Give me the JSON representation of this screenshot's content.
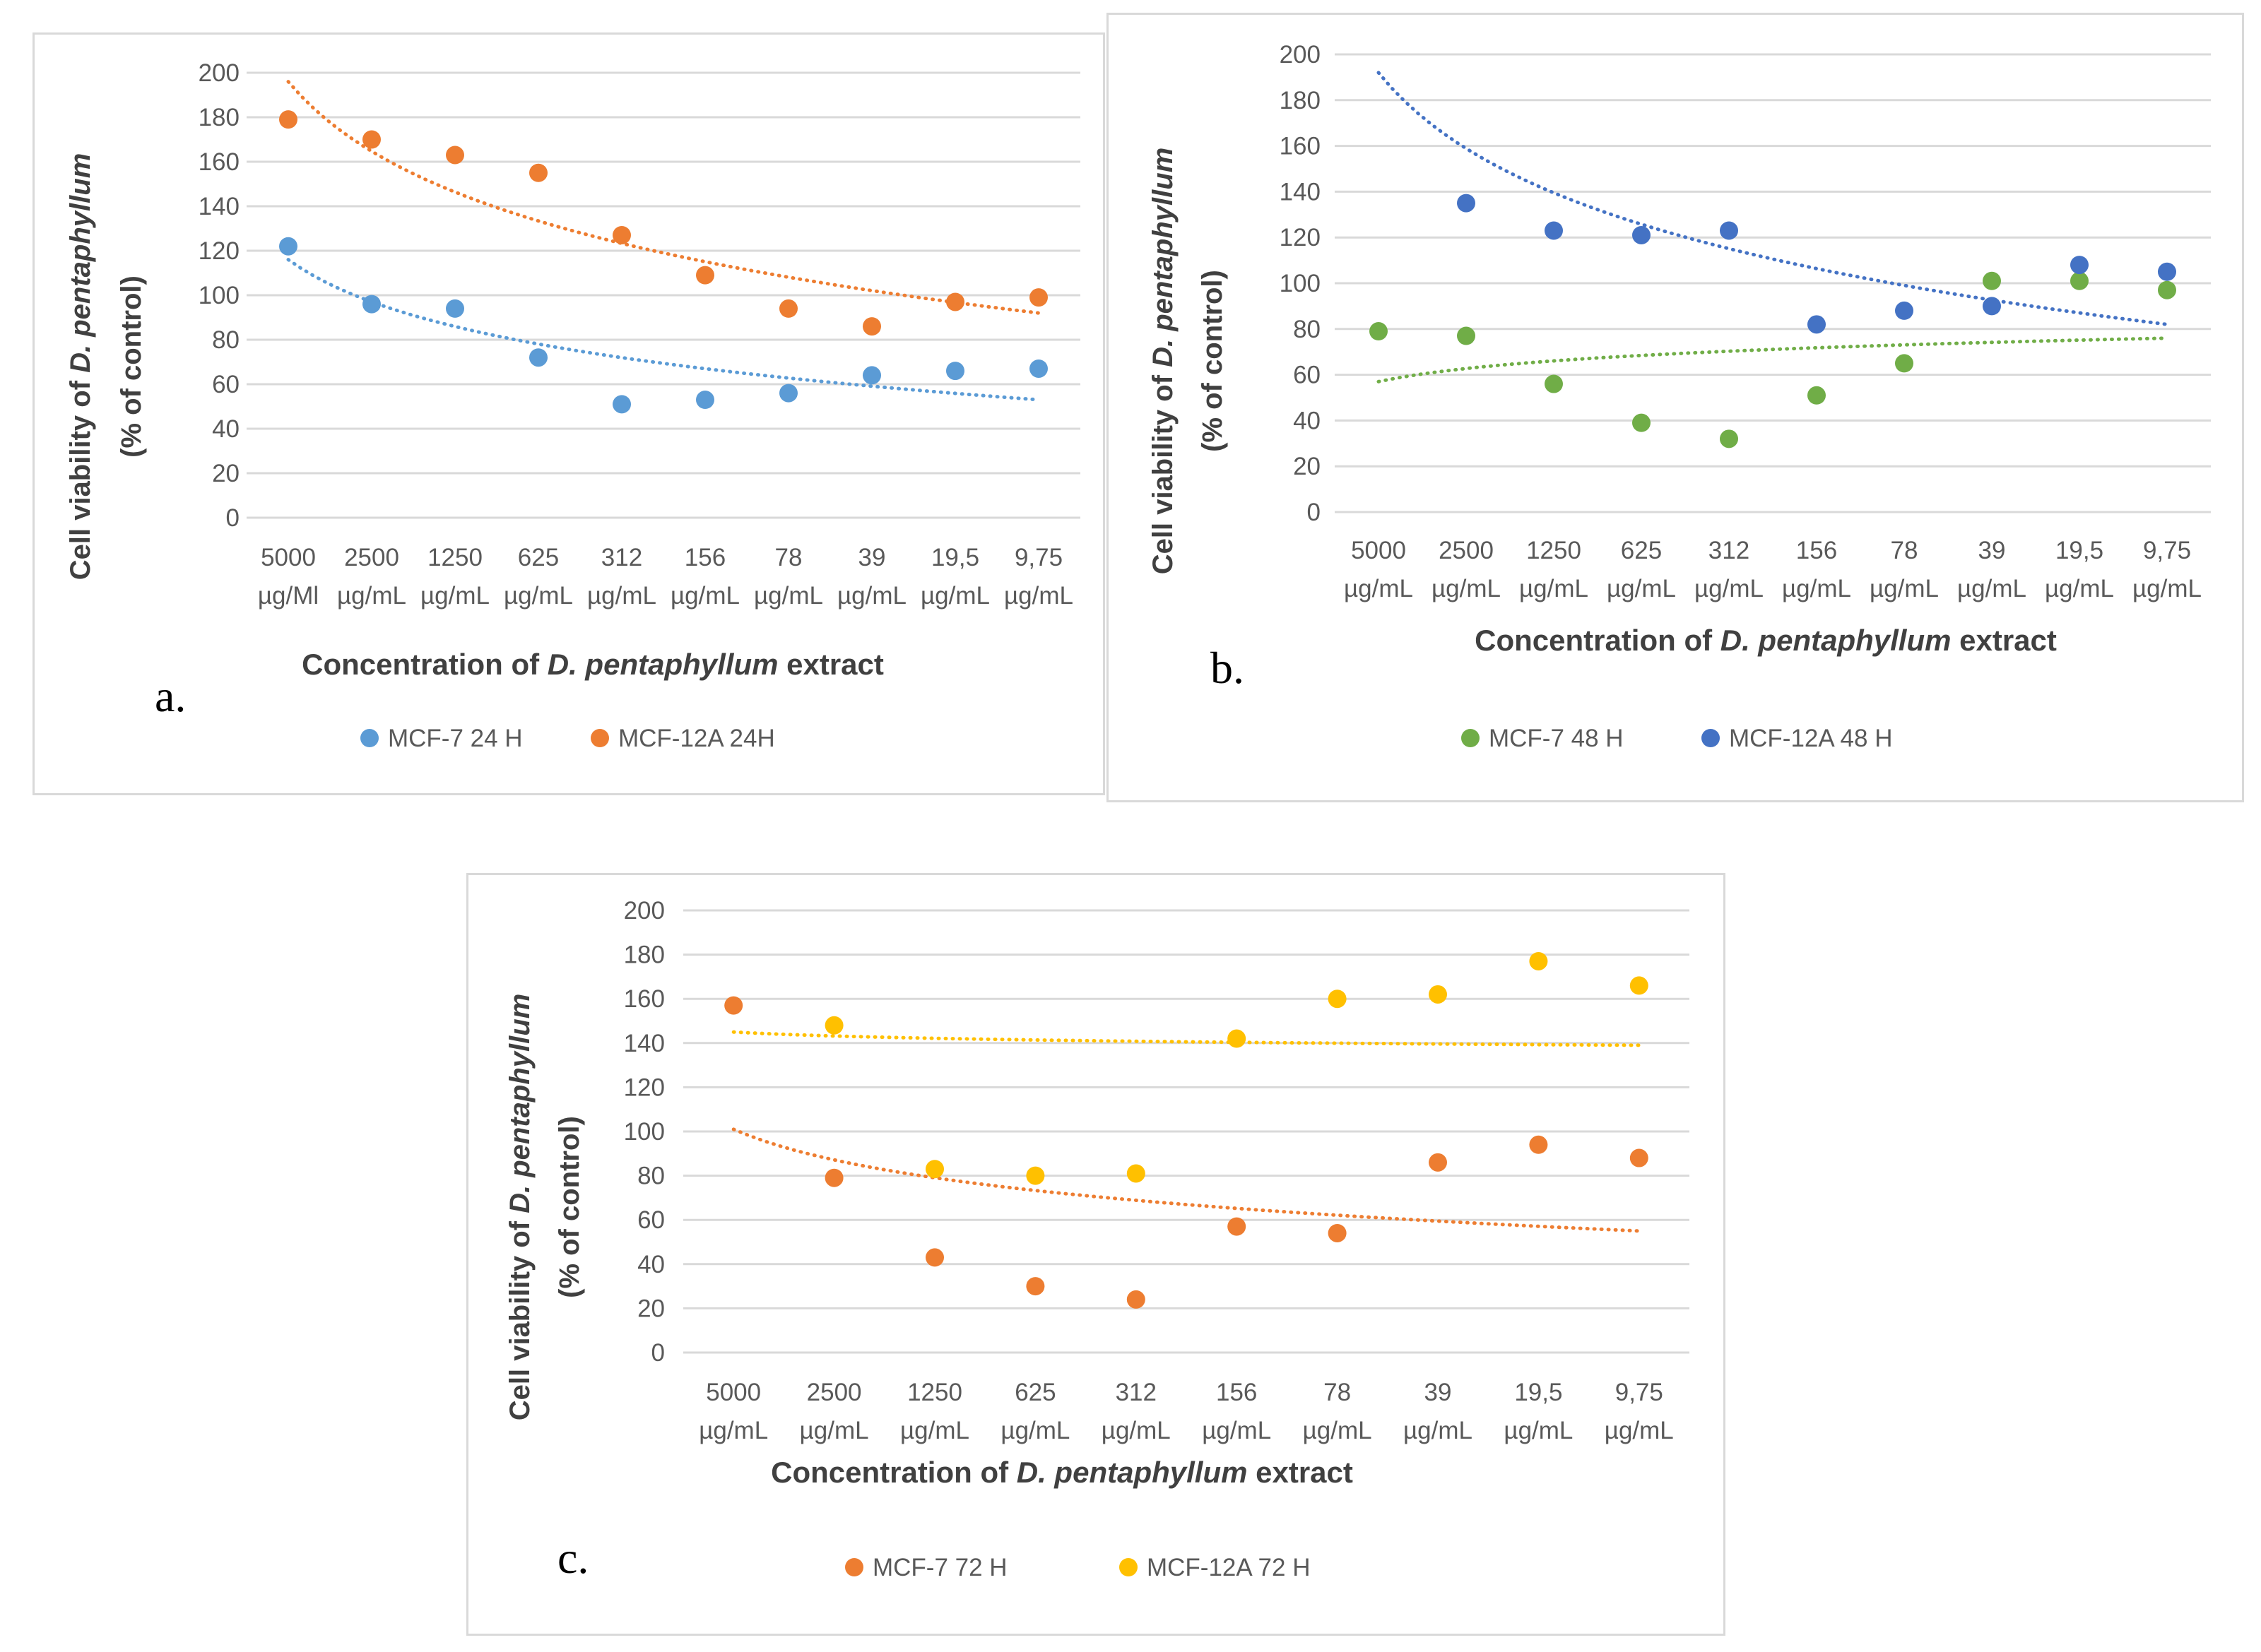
{
  "chart_data": [
    {
      "type": "scatter",
      "panel_label": "a.",
      "categories": [
        {
          "value": "5000",
          "unit": "µg/Ml"
        },
        {
          "value": "2500",
          "unit": "µg/mL"
        },
        {
          "value": "1250",
          "unit": "µg/mL"
        },
        {
          "value": "625",
          "unit": "µg/mL"
        },
        {
          "value": "312",
          "unit": "µg/mL"
        },
        {
          "value": "156",
          "unit": "µg/mL"
        },
        {
          "value": "78",
          "unit": "µg/mL"
        },
        {
          "value": "39",
          "unit": "µg/mL"
        },
        {
          "value": "19,5",
          "unit": "µg/mL"
        },
        {
          "value": "9,75",
          "unit": "µg/mL"
        }
      ],
      "ylim": [
        0,
        200
      ],
      "yticks": [
        "0",
        "20",
        "40",
        "60",
        "80",
        "100",
        "120",
        "140",
        "160",
        "180",
        "200"
      ],
      "ylabel_line1_prefix": "Cell viability of ",
      "ylabel_line1_italic": "D. pentaphyllum",
      "ylabel_line2": "(% of control)",
      "xlabel_prefix": "Concentration of ",
      "xlabel_italic": "D. pentaphyllum",
      "xlabel_suffix": " extract",
      "series": [
        {
          "name": "MCF-7  24 H",
          "color": "#5b9bd5",
          "values": [
            122,
            96,
            94,
            72,
            51,
            53,
            56,
            64,
            66,
            67
          ],
          "trend": [
            116,
            53
          ]
        },
        {
          "name": "MCF-12A  24H",
          "color": "#ed7d31",
          "values": [
            179,
            170,
            163,
            155,
            127,
            109,
            94,
            86,
            97,
            99
          ],
          "trend": [
            196,
            92
          ]
        }
      ]
    },
    {
      "type": "scatter",
      "panel_label": "b.",
      "categories": [
        {
          "value": "5000",
          "unit": "µg/mL"
        },
        {
          "value": "2500",
          "unit": "µg/mL"
        },
        {
          "value": "1250",
          "unit": "µg/mL"
        },
        {
          "value": "625",
          "unit": "µg/mL"
        },
        {
          "value": "312",
          "unit": "µg/mL"
        },
        {
          "value": "156",
          "unit": "µg/mL"
        },
        {
          "value": "78",
          "unit": "µg/mL"
        },
        {
          "value": "39",
          "unit": "µg/mL"
        },
        {
          "value": "19,5",
          "unit": "µg/mL"
        },
        {
          "value": "9,75",
          "unit": "µg/mL"
        }
      ],
      "ylim": [
        0,
        200
      ],
      "yticks": [
        "0",
        "20",
        "40",
        "60",
        "80",
        "100",
        "120",
        "140",
        "160",
        "180",
        "200"
      ],
      "ylabel_line1_prefix": "Cell viability of ",
      "ylabel_line1_italic": "D. pentaphyllum",
      "ylabel_line2": "(% of control)",
      "xlabel_prefix": "Concentration of ",
      "xlabel_italic": "D. pentaphyllum",
      "xlabel_suffix": " extract",
      "series": [
        {
          "name": "MCF-7 48 H",
          "color": "#70ad47",
          "values": [
            79,
            77,
            56,
            39,
            32,
            51,
            65,
            101,
            101,
            97
          ],
          "trend": [
            57,
            76
          ]
        },
        {
          "name": "MCF-12A 48 H",
          "color": "#4472c4",
          "values": [
            null,
            135,
            123,
            121,
            123,
            82,
            88,
            90,
            108,
            105
          ],
          "trend": [
            192,
            82
          ]
        }
      ]
    },
    {
      "type": "scatter",
      "panel_label": "c.",
      "categories": [
        {
          "value": "5000",
          "unit": "µg/mL"
        },
        {
          "value": "2500",
          "unit": "µg/mL"
        },
        {
          "value": "1250",
          "unit": "µg/mL"
        },
        {
          "value": "625",
          "unit": "µg/mL"
        },
        {
          "value": "312",
          "unit": "µg/mL"
        },
        {
          "value": "156",
          "unit": "µg/mL"
        },
        {
          "value": "78",
          "unit": "µg/mL"
        },
        {
          "value": "39",
          "unit": "µg/mL"
        },
        {
          "value": "19,5",
          "unit": "µg/mL"
        },
        {
          "value": "9,75",
          "unit": "µg/mL"
        }
      ],
      "ylim": [
        0,
        200
      ],
      "yticks": [
        "0",
        "20",
        "40",
        "60",
        "80",
        "100",
        "120",
        "140",
        "160",
        "180",
        "200"
      ],
      "ylabel_line1_prefix": "Cell viability of ",
      "ylabel_line1_italic": "D. pentaphyllum",
      "ylabel_line2": "(% of control)",
      "xlabel_prefix": "Concentration of ",
      "xlabel_italic": "D. pentaphyllum",
      "xlabel_suffix": " extract",
      "series": [
        {
          "name": "MCF-7 72 H",
          "color": "#ed7d31",
          "values": [
            157,
            79,
            43,
            30,
            24,
            57,
            54,
            86,
            94,
            88
          ],
          "trend": [
            101,
            55
          ]
        },
        {
          "name": "MCF-12A 72 H",
          "color": "#ffc000",
          "values": [
            null,
            148,
            83,
            80,
            81,
            142,
            160,
            162,
            177,
            166
          ],
          "trend": [
            145,
            139
          ]
        }
      ]
    }
  ]
}
